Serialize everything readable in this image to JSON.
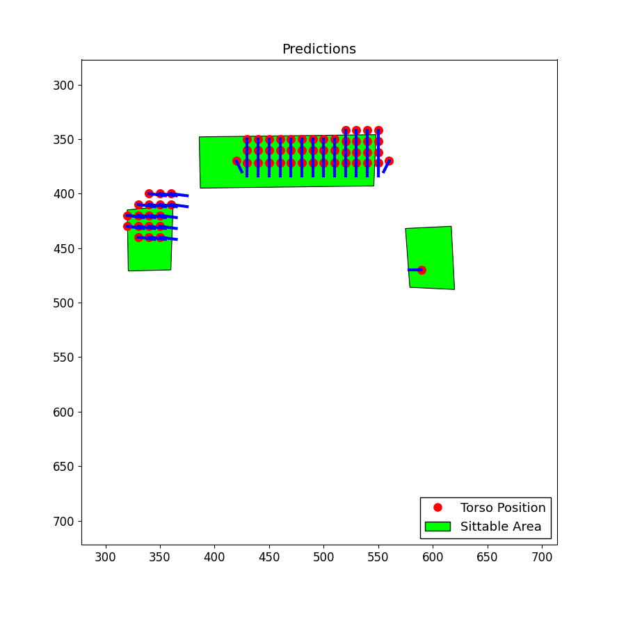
{
  "chart_data": {
    "type": "scatter",
    "title": "Predictions",
    "xlim": [
      278,
      714
    ],
    "ylim": [
      722,
      277
    ],
    "xticks": [
      300,
      350,
      400,
      450,
      500,
      550,
      600,
      650,
      700
    ],
    "yticks": [
      300,
      350,
      400,
      450,
      500,
      550,
      600,
      650,
      700
    ],
    "legend": "lower right",
    "areas": {
      "name": "Sittable Area",
      "color": "#00ff00",
      "polygons": [
        {
          "x": [
            386,
            548,
            546,
            387
          ],
          "y": [
            348,
            346,
            393,
            395
          ]
        },
        {
          "x": [
            320,
            362,
            360,
            321
          ],
          "y": [
            415,
            411,
            470,
            471
          ]
        },
        {
          "x": [
            575,
            617,
            620,
            579
          ],
          "y": [
            432,
            430,
            488,
            486
          ]
        }
      ]
    },
    "series": [
      {
        "name": "Torso Position",
        "color": "#ff0000",
        "marker": "o",
        "direction_color": "#0000ff",
        "x": [
          430,
          440,
          450,
          460,
          470,
          480,
          490,
          500,
          510,
          430,
          440,
          450,
          460,
          470,
          480,
          490,
          500,
          510,
          430,
          440,
          450,
          460,
          470,
          480,
          490,
          500,
          510,
          520,
          530,
          540,
          550,
          520,
          530,
          540,
          550,
          520,
          530,
          540,
          550,
          520,
          530,
          540,
          550,
          420,
          560,
          340,
          350,
          360,
          330,
          340,
          350,
          360,
          320,
          330,
          340,
          350,
          320,
          330,
          340,
          350,
          330,
          340,
          350,
          590
        ],
        "y": [
          350,
          350,
          350,
          350,
          350,
          350,
          350,
          350,
          350,
          360,
          360,
          360,
          360,
          360,
          360,
          360,
          360,
          360,
          372,
          372,
          372,
          372,
          372,
          372,
          372,
          372,
          372,
          342,
          342,
          342,
          342,
          352,
          352,
          352,
          352,
          362,
          362,
          362,
          362,
          372,
          372,
          372,
          372,
          370,
          370,
          400,
          400,
          400,
          410,
          410,
          410,
          410,
          420,
          420,
          420,
          420,
          430,
          430,
          430,
          430,
          440,
          440,
          440,
          470
        ],
        "dx": [
          0,
          0,
          0,
          0,
          0,
          0,
          0,
          0,
          0,
          0,
          0,
          0,
          0,
          0,
          0,
          0,
          0,
          0,
          0,
          0,
          0,
          0,
          0,
          0,
          0,
          0,
          0,
          0,
          0,
          0,
          0,
          0,
          0,
          0,
          0,
          0,
          0,
          0,
          0,
          0,
          0,
          0,
          0,
          5,
          -5,
          15,
          15,
          15,
          15,
          15,
          15,
          15,
          15,
          15,
          15,
          15,
          15,
          15,
          15,
          15,
          15,
          15,
          15,
          -12
        ],
        "dy": [
          12,
          12,
          12,
          12,
          12,
          12,
          12,
          12,
          12,
          12,
          12,
          12,
          12,
          12,
          12,
          12,
          12,
          12,
          12,
          12,
          12,
          12,
          12,
          12,
          12,
          12,
          12,
          12,
          12,
          12,
          12,
          12,
          12,
          12,
          12,
          12,
          12,
          12,
          12,
          12,
          12,
          12,
          12,
          10,
          10,
          2,
          2,
          2,
          2,
          2,
          2,
          2,
          2,
          2,
          2,
          2,
          2,
          2,
          2,
          2,
          2,
          2,
          2,
          0
        ]
      }
    ]
  }
}
